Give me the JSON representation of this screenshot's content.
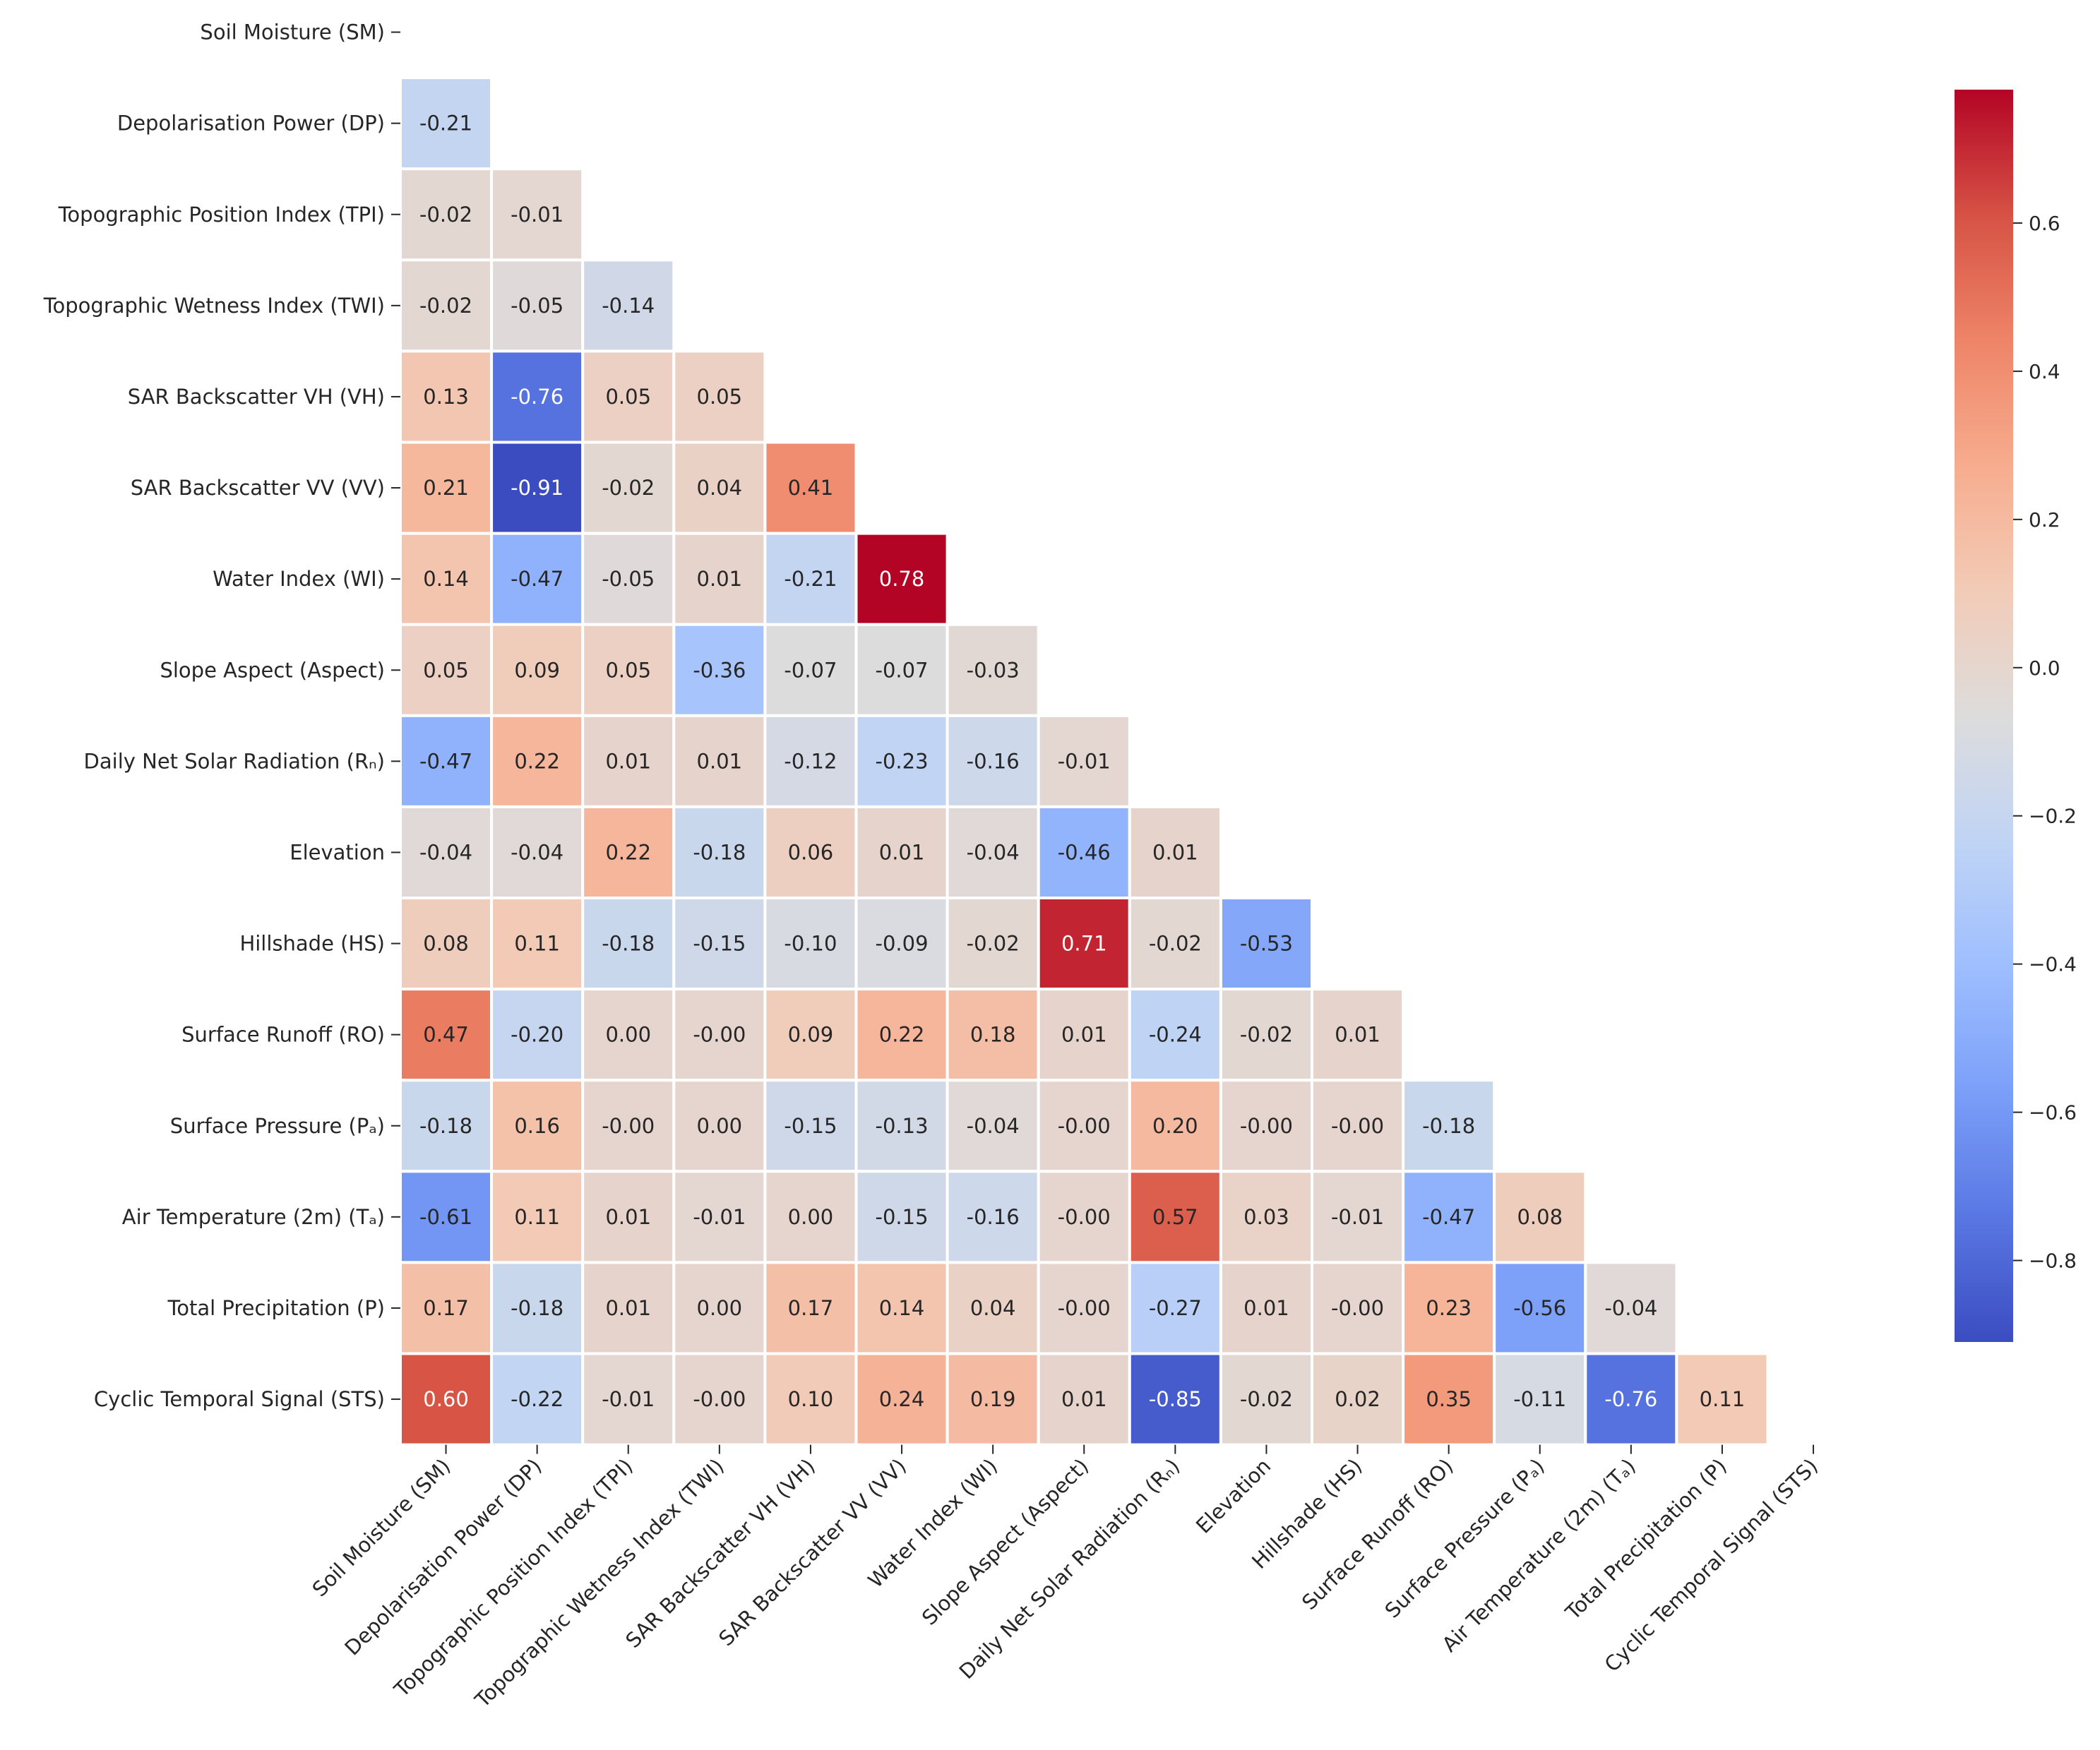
{
  "chart_data": {
    "type": "heatmap",
    "title": "",
    "variables": [
      "Soil Moisture (SM)",
      "Depolarisation Power (DP)",
      "Topographic Position Index (TPI)",
      "Topographic Wetness Index (TWI)",
      "SAR Backscatter VH (VH)",
      "SAR Backscatter VV (VV)",
      "Water Index (WI)",
      "Slope Aspect (Aspect)",
      "Daily Net Solar Radiation (Rₙ)",
      "Elevation",
      "Hillshade (HS)",
      "Surface Runoff (RO)",
      "Surface Pressure (Pₐ)",
      "Air Temperature (2m) (Tₐ)",
      "Total Precipitation (P)",
      "Cyclic Temporal Signal (STS)"
    ],
    "mask": "upper triangle including diagonal",
    "lower_triangle_values": [
      [],
      [
        "-0.21"
      ],
      [
        "-0.02",
        "-0.01"
      ],
      [
        "-0.02",
        "-0.05",
        "-0.14"
      ],
      [
        "0.13",
        "-0.76",
        "0.05",
        "0.05"
      ],
      [
        "0.21",
        "-0.91",
        "-0.02",
        "0.04",
        "0.41"
      ],
      [
        "0.14",
        "-0.47",
        "-0.05",
        "0.01",
        "-0.21",
        "0.78"
      ],
      [
        "0.05",
        "0.09",
        "0.05",
        "-0.36",
        "-0.07",
        "-0.07",
        "-0.03"
      ],
      [
        "-0.47",
        "0.22",
        "0.01",
        "0.01",
        "-0.12",
        "-0.23",
        "-0.16",
        "-0.01"
      ],
      [
        "-0.04",
        "-0.04",
        "0.22",
        "-0.18",
        "0.06",
        "0.01",
        "-0.04",
        "-0.46",
        "0.01"
      ],
      [
        "0.08",
        "0.11",
        "-0.18",
        "-0.15",
        "-0.10",
        "-0.09",
        "-0.02",
        "0.71",
        "-0.02",
        "-0.53"
      ],
      [
        "0.47",
        "-0.20",
        "0.00",
        "-0.00",
        "0.09",
        "0.22",
        "0.18",
        "0.01",
        "-0.24",
        "-0.02",
        "0.01"
      ],
      [
        "-0.18",
        "0.16",
        "-0.00",
        "0.00",
        "-0.15",
        "-0.13",
        "-0.04",
        "-0.00",
        "0.20",
        "-0.00",
        "-0.00",
        "-0.18"
      ],
      [
        "-0.61",
        "0.11",
        "0.01",
        "-0.01",
        "0.00",
        "-0.15",
        "-0.16",
        "-0.00",
        "0.57",
        "0.03",
        "-0.01",
        "-0.47",
        "0.08"
      ],
      [
        "0.17",
        "-0.18",
        "0.01",
        "0.00",
        "0.17",
        "0.14",
        "0.04",
        "-0.00",
        "-0.27",
        "0.01",
        "-0.00",
        "0.23",
        "-0.56",
        "-0.04"
      ],
      [
        "0.60",
        "-0.22",
        "-0.01",
        "-0.00",
        "0.10",
        "0.24",
        "0.19",
        "0.01",
        "-0.85",
        "-0.02",
        "0.02",
        "0.35",
        "-0.11",
        "-0.76",
        "0.11"
      ]
    ],
    "colormap": "coolwarm",
    "vmin": -0.91,
    "vmax": 0.78,
    "colorbar": {
      "ticks": [
        0.6,
        0.4,
        0.2,
        0.0,
        -0.2,
        -0.4,
        -0.6,
        -0.8
      ],
      "tick_labels": [
        "0.6",
        "0.4",
        "0.2",
        "0.0",
        "−0.2",
        "−0.4",
        "−0.6",
        "−0.8"
      ],
      "position": "right"
    },
    "xlabel": "",
    "ylabel": ""
  }
}
